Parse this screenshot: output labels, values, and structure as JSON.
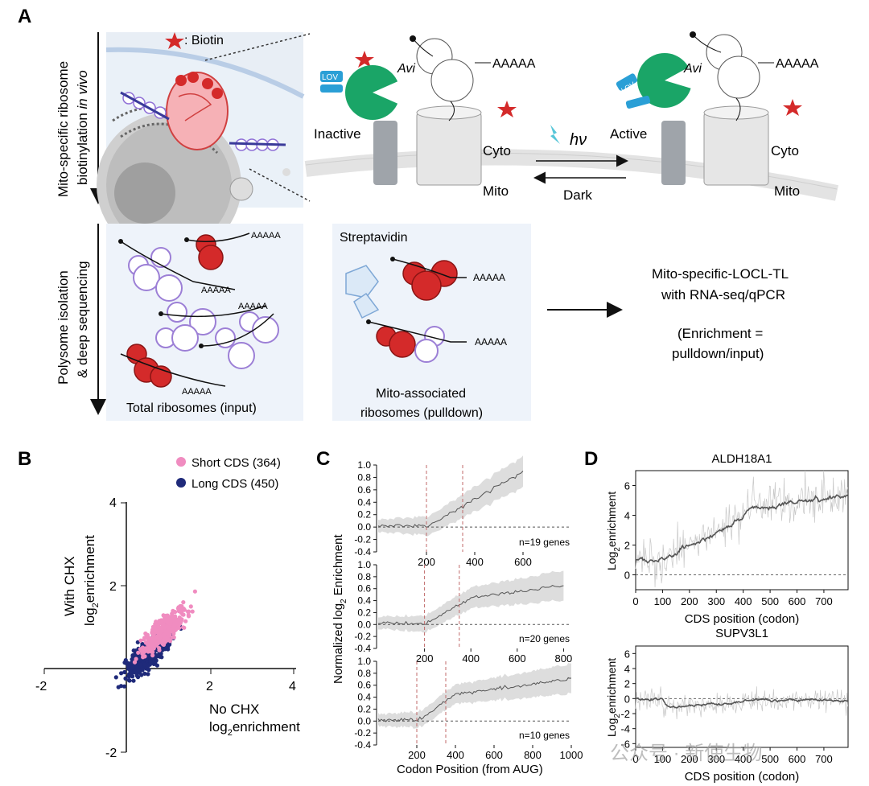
{
  "panel_labels": {
    "a": "A",
    "b": "B",
    "c": "C",
    "d": "D"
  },
  "panel_a": {
    "biotin_legend": ": Biotin",
    "side_top": "Mito-specific ribosome",
    "side_top2": "biotinylation ",
    "side_top2_italic": "in vivo",
    "side_bottom": "Polysome isolation",
    "side_bottom2": "& deep sequencing",
    "inactive": "Inactive",
    "active": "Active",
    "cyto": "Cyto",
    "mito": "Mito",
    "dark": "Dark",
    "light": "hν",
    "lov": "LOV",
    "avi": "Avi",
    "polya": "AAAAA",
    "streptavidin": "Streptavidin",
    "total_ribosomes": "Total ribosomes (input)",
    "mito_assoc_1": "Mito-associated",
    "mito_assoc_2": "ribosomes (pulldown)",
    "method_1": "Mito-specific-LOCL-TL",
    "method_2": "with RNA-seq/qPCR",
    "enrich_1": "(Enrichment =",
    "enrich_2": "pulldown/input)"
  },
  "colors": {
    "red": "#d42a2a",
    "green": "#1aa567",
    "blue": "#2a9fd6",
    "pink": "#f08cc0",
    "navy": "#1f2a7a",
    "gray_band": "#d4d4d4",
    "dash": "#c06a6a"
  },
  "chart_data": [
    {
      "id": "B",
      "type": "scatter",
      "xlabel": "No CHX",
      "xlabel2": "log",
      "xlabel2_sub": "2",
      "xlabel2_end": "enrichment",
      "ylabel": "With CHX",
      "ylabel2": "log",
      "ylabel2_sub": "2",
      "ylabel2_end": "enrichment",
      "xticks": [
        "-2",
        "2",
        "4"
      ],
      "yticks": [
        "4",
        "2",
        "-2"
      ],
      "xlim": [
        -2,
        4
      ],
      "ylim": [
        -2,
        4
      ],
      "series": [
        {
          "name": "Short CDS (364)",
          "color": "#f08cc0"
        },
        {
          "name": "Long CDS (450)",
          "color": "#1f2a7a"
        }
      ]
    },
    {
      "id": "C",
      "type": "line",
      "ylabel": "Normalized log",
      "ylabel_sub": "2",
      "ylabel_end": " Enrichment",
      "xlabel": "Codon Position (from AUG)",
      "yticks": [
        "1.0",
        "0.8",
        "0.6",
        "0.4",
        "0.2",
        "0.0",
        "-0.2",
        "-0.4"
      ],
      "subplots": [
        {
          "annotation": "n=19 genes",
          "xticks": [
            "200",
            "400",
            "600"
          ],
          "xmax": 600
        },
        {
          "annotation": "n=20 genes",
          "xticks": [
            "200",
            "400",
            "600",
            "800"
          ],
          "xmax": 800
        },
        {
          "annotation": "n=10 genes",
          "xticks": [
            "200",
            "400",
            "600",
            "800",
            "1000"
          ],
          "xmax": 1000
        }
      ],
      "dashed_lines_x": [
        200,
        350
      ]
    },
    {
      "id": "D",
      "type": "line",
      "xlabel": "CDS position (codon)",
      "ylabel": "Log",
      "ylabel_sub": "2",
      "ylabel_end": "enrichment",
      "xticks": [
        "0",
        "100",
        "200",
        "300",
        "400",
        "500",
        "600",
        "700"
      ],
      "yticks": [
        "6",
        "4",
        "2",
        "0",
        "-2",
        "-4",
        "-6"
      ],
      "subplots": [
        {
          "title": "ALDH18A1"
        },
        {
          "title": "SUPV3L1"
        }
      ]
    }
  ],
  "watermark": "公众号 · 新使生物"
}
